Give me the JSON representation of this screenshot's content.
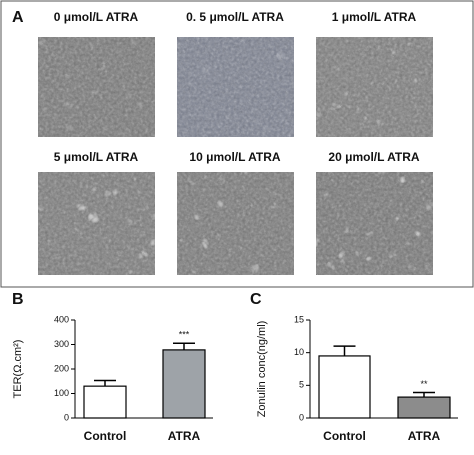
{
  "panels": {
    "a": "A",
    "b": "B",
    "c": "C"
  },
  "images": [
    {
      "caption": "0 μmol/L ATRA"
    },
    {
      "caption": "0. 5 μmol/L ATRA"
    },
    {
      "caption": "1 μmol/L ATRA"
    },
    {
      "caption": "5 μmol/L ATRA"
    },
    {
      "caption": "10 μmol/L ATRA"
    },
    {
      "caption": "20 μmol/L ATRA"
    }
  ],
  "chart_data": [
    {
      "type": "bar",
      "y_label": "TER(Ω.cm²)",
      "categories": [
        "Control",
        "ATRA"
      ],
      "values": [
        130,
        278
      ],
      "errors": [
        23,
        27
      ],
      "colors": [
        "#ffffff",
        "#9ea3a8"
      ],
      "significance": [
        null,
        "***"
      ],
      "ylim": [
        0,
        400
      ],
      "yticks": [
        0,
        100,
        200,
        300,
        400
      ]
    },
    {
      "type": "bar",
      "y_label": "Zonulin conc(ng/ml)",
      "categories": [
        "Control",
        "ATRA"
      ],
      "values": [
        9.5,
        3.2
      ],
      "errors": [
        1.5,
        0.7
      ],
      "colors": [
        "#ffffff",
        "#8c8c8c"
      ],
      "significance": [
        null,
        "**"
      ],
      "ylim": [
        0,
        15
      ],
      "yticks": [
        0,
        5,
        10,
        15
      ]
    }
  ]
}
